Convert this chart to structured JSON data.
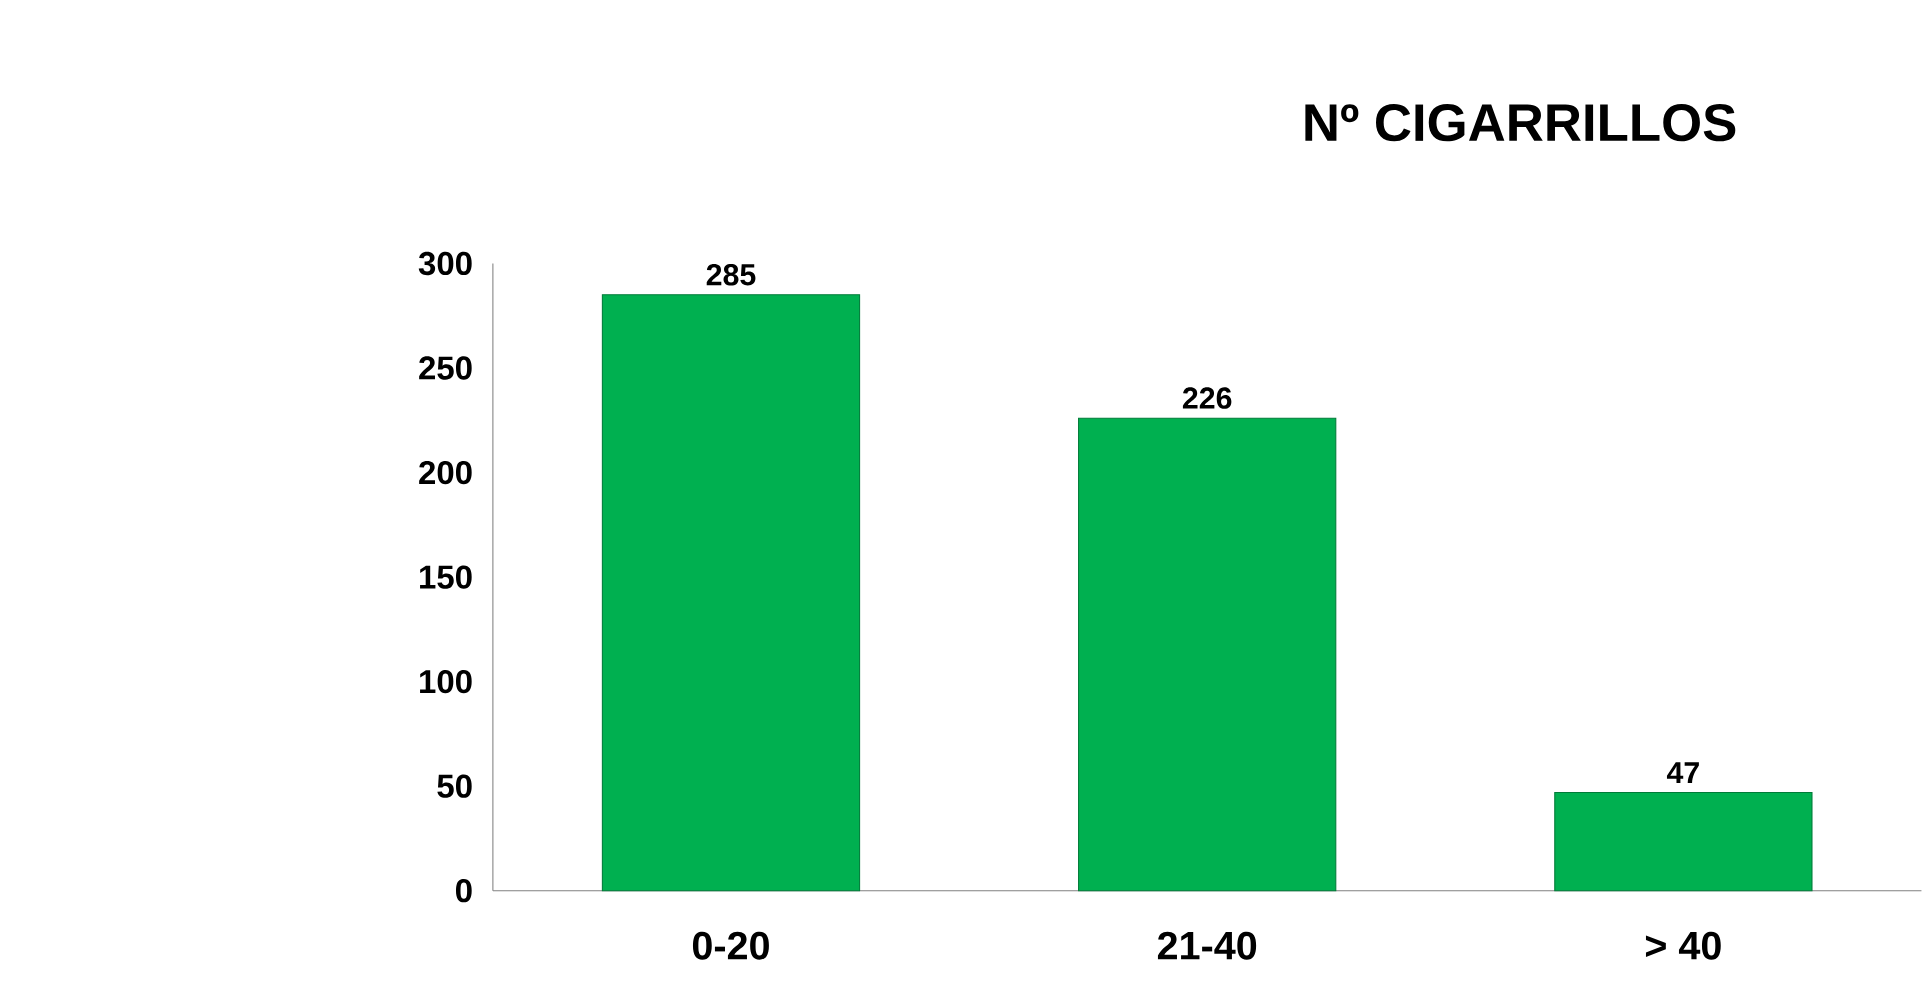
{
  "chart_data": {
    "type": "bar",
    "title": "Nº CIGARRILLOS",
    "categories": [
      "0-20",
      "21-40",
      "> 40"
    ],
    "values": [
      285,
      226,
      47
    ],
    "color": "#00b050",
    "ylim": [
      0,
      300
    ],
    "yticks": [
      0,
      50,
      100,
      150,
      200,
      250,
      300
    ],
    "data_labels": true
  }
}
